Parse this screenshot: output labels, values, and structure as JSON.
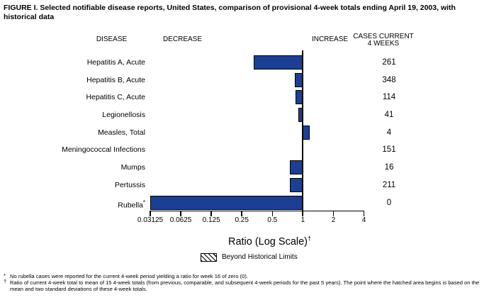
{
  "title": "FIGURE I. Selected notifiable disease reports, United States, comparison of provisional 4-week totals ending April 19, 2003, with historical data",
  "columns": {
    "disease": "DISEASE",
    "decrease": "DECREASE",
    "increase": "INCREASE",
    "cases_line1": "CASES CURRENT",
    "cases_line2": "4 WEEKS"
  },
  "chart_data": {
    "type": "bar",
    "orientation": "horizontal",
    "scale": "log2",
    "bar_color": "#1c3f94",
    "axis": {
      "label": "Ratio (Log Scale)",
      "label_superscript": "†",
      "min": 0.03125,
      "max": 4,
      "baseline": 1,
      "ticks": [
        0.03125,
        0.0625,
        0.125,
        0.25,
        0.5,
        1,
        2,
        4
      ],
      "tick_labels": [
        "0.03125",
        "0.0625",
        "0.125",
        "0.25",
        "0.5",
        "1",
        "2",
        "4"
      ]
    },
    "rows": [
      {
        "disease": "Hepatitis A, Acute",
        "ratio": 0.33,
        "cases": 261
      },
      {
        "disease": "Hepatitis B, Acute",
        "ratio": 0.83,
        "cases": 348
      },
      {
        "disease": "Hepatitis C, Acute",
        "ratio": 0.85,
        "cases": 114
      },
      {
        "disease": "Legionellosis",
        "ratio": 0.91,
        "cases": 41
      },
      {
        "disease": "Measles, Total",
        "ratio": 1.17,
        "cases": 4
      },
      {
        "disease": "Meningococcal Infections",
        "ratio": 0.98,
        "cases": 151
      },
      {
        "disease": "Mumps",
        "ratio": 0.74,
        "cases": 16
      },
      {
        "disease": "Pertussis",
        "ratio": 0.74,
        "cases": 211
      },
      {
        "disease": "Rubella",
        "label_superscript": "*",
        "ratio": 0,
        "cases": 0
      }
    ],
    "legend": {
      "label": "Beyond Historical Limits",
      "style": "hatched"
    }
  },
  "footnotes": [
    {
      "marker": "*",
      "text": "No rubella cases were reported for the current 4-week period yielding a ratio for week 16 of zero (0)."
    },
    {
      "marker": "†",
      "text": "Ratio of current 4-week total to mean of 15 4-week totals (from previous, comparable, and subsequent 4-week periods for the past 5 years). The point where the hatched area begins is based on the mean and two standard deviations of these 4-week totals."
    }
  ]
}
